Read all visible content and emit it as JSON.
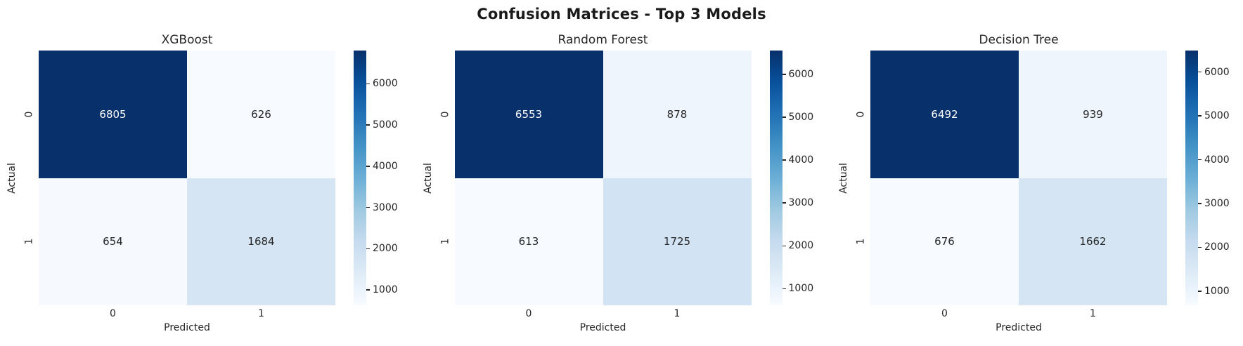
{
  "title": "Confusion Matrices - Top 3 Models",
  "colors": {
    "background": "#ffffff",
    "suptitle_text": "#1a1a1a",
    "label_text": "#262626",
    "annotation_light": "#ffffff",
    "annotation_dark": "#262626",
    "colormap_anchors": [
      "#f7fbff",
      "#deebf7",
      "#c6dbef",
      "#9ecae1",
      "#6baed6",
      "#4292c6",
      "#2171b5",
      "#08519c",
      "#08306b"
    ]
  },
  "chart_data": [
    {
      "type": "heatmap",
      "title": "XGBoost",
      "xlabel": "Predicted",
      "ylabel": "Actual",
      "x_ticklabels": [
        "0",
        "1"
      ],
      "y_ticklabels": [
        "0",
        "1"
      ],
      "matrix": [
        [
          6805,
          626
        ],
        [
          654,
          1684
        ]
      ],
      "colormap": "Blues",
      "colorbar_ticks": [
        1000,
        2000,
        3000,
        4000,
        5000,
        6000
      ],
      "legend_position": "right"
    },
    {
      "type": "heatmap",
      "title": "Random Forest",
      "xlabel": "Predicted",
      "ylabel": "Actual",
      "x_ticklabels": [
        "0",
        "1"
      ],
      "y_ticklabels": [
        "0",
        "1"
      ],
      "matrix": [
        [
          6553,
          878
        ],
        [
          613,
          1725
        ]
      ],
      "colormap": "Blues",
      "colorbar_ticks": [
        1000,
        2000,
        3000,
        4000,
        5000,
        6000
      ],
      "legend_position": "right"
    },
    {
      "type": "heatmap",
      "title": "Decision Tree",
      "xlabel": "Predicted",
      "ylabel": "Actual",
      "x_ticklabels": [
        "0",
        "1"
      ],
      "y_ticklabels": [
        "0",
        "1"
      ],
      "matrix": [
        [
          6492,
          939
        ],
        [
          676,
          1662
        ]
      ],
      "colormap": "Blues",
      "colorbar_ticks": [
        1000,
        2000,
        3000,
        4000,
        5000,
        6000
      ],
      "legend_position": "right"
    }
  ]
}
